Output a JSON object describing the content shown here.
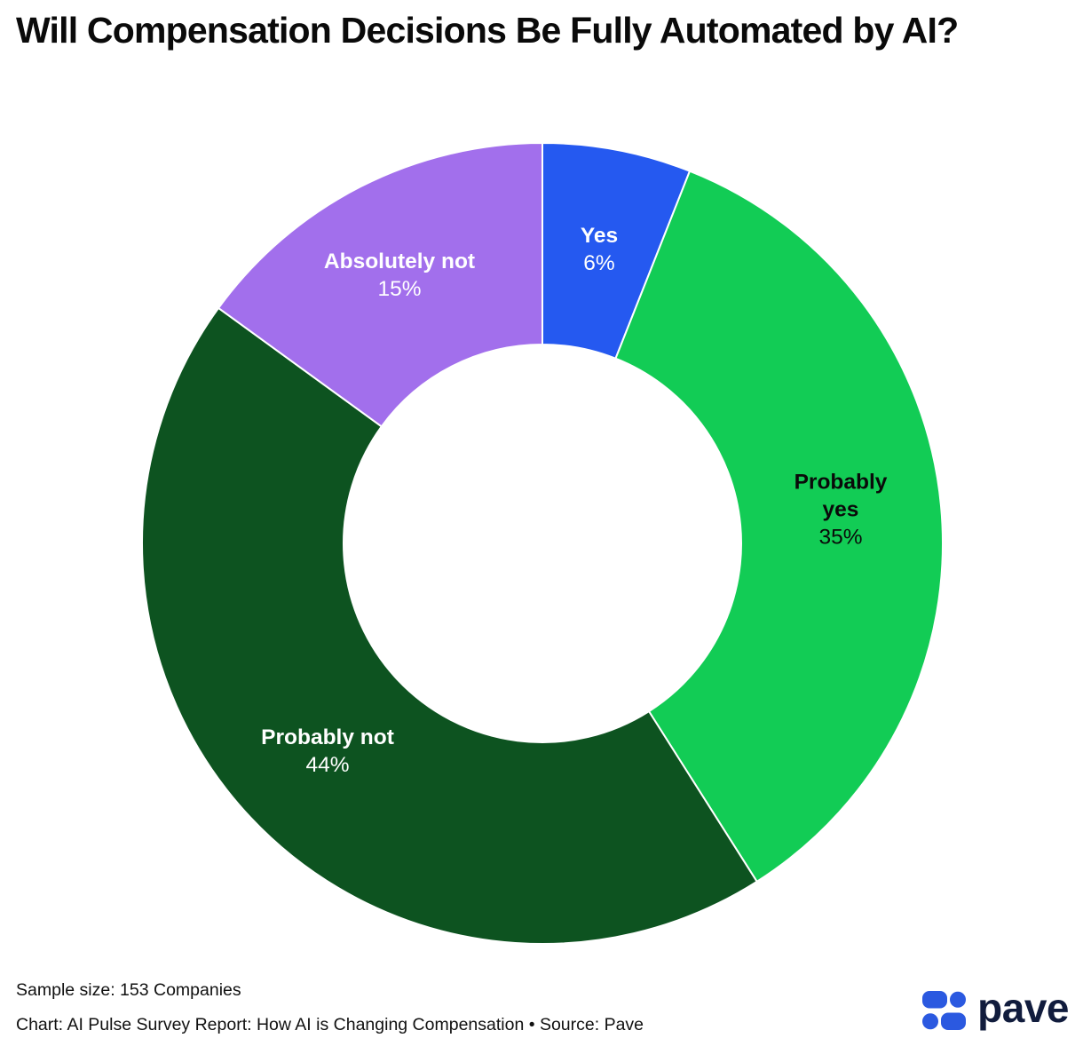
{
  "title": "Will Compensation Decisions Be Fully Automated by AI?",
  "chart_data": {
    "type": "pie",
    "variant": "donut",
    "title": "Will Compensation Decisions Be Fully Automated by AI?",
    "start_angle_deg": 0,
    "direction": "clockwise",
    "inner_radius_ratio": 0.497,
    "separator_color": "#ffffff",
    "slices": [
      {
        "label": "Yes",
        "pct_label": "6%",
        "value": 6,
        "color": "#2559F0",
        "text_color": "#ffffff"
      },
      {
        "label": "Probably yes",
        "pct_label": "35%",
        "value": 35,
        "color": "#12CC55",
        "text_color": "#0a0a0a"
      },
      {
        "label": "Probably not",
        "pct_label": "44%",
        "value": 44,
        "color": "#0D5320",
        "text_color": "#ffffff"
      },
      {
        "label": "Absolutely not",
        "pct_label": "15%",
        "value": 15,
        "color": "#A26FEC",
        "text_color": "#ffffff"
      }
    ]
  },
  "footer": {
    "sample_size": "Sample size: 153 Companies",
    "attribution": "Chart: AI Pulse Survey Report: How AI is Changing Compensation • Source: Pave"
  },
  "logo": {
    "wordmark": "pave",
    "glyph_color": "#2B59E0",
    "wordmark_color": "#111C3D"
  }
}
